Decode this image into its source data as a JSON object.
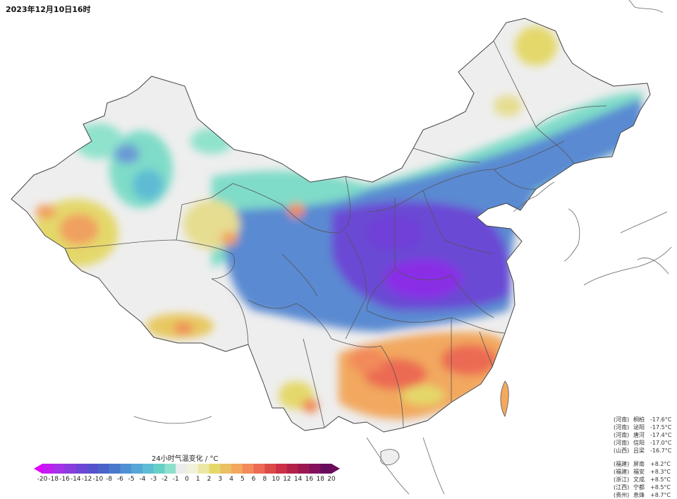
{
  "header": {
    "timestamp": "2023年12月10日16时"
  },
  "legend": {
    "title": "24小时气温变化 / °C",
    "ticks": [
      "-20",
      "-18",
      "-16",
      "-14",
      "-12",
      "-10",
      "-8",
      "-6",
      "-5",
      "-4",
      "-3",
      "-2",
      "-1",
      "0",
      "1",
      "2",
      "3",
      "4",
      "5",
      "6",
      "8",
      "10",
      "12",
      "14",
      "16",
      "18",
      "20"
    ],
    "colors": [
      "#e000ff",
      "#c21cf2",
      "#a531e8",
      "#8a3cde",
      "#6c46d6",
      "#5552cc",
      "#4a63c8",
      "#4a79cc",
      "#4f90d2",
      "#56a6d6",
      "#5dbcd4",
      "#66d0c6",
      "#8ee0cc",
      "#ececec",
      "#f2f2dc",
      "#ece7a4",
      "#e4d86a",
      "#ebc062",
      "#f2a85e",
      "#f28a5a",
      "#ec6a52",
      "#dc4a48",
      "#cc3046",
      "#b22248",
      "#9a1852",
      "#82125c",
      "#6a0c5c"
    ]
  },
  "stations": {
    "drop": [
      {
        "prov": "(河南)",
        "name": "桐柏",
        "value": "-17.6°C"
      },
      {
        "prov": "(河南)",
        "name": "泌阳",
        "value": "-17.5°C"
      },
      {
        "prov": "(河南)",
        "name": "唐河",
        "value": "-17.4°C"
      },
      {
        "prov": "(河南)",
        "name": "信阳",
        "value": "-17.0°C"
      },
      {
        "prov": "(山西)",
        "name": "吕梁",
        "value": "-16.7°C"
      }
    ],
    "rise": [
      {
        "prov": "(福建)",
        "name": "屏南",
        "value": "+8.2°C"
      },
      {
        "prov": "(福建)",
        "name": "福安",
        "value": "+8.3°C"
      },
      {
        "prov": "(浙江)",
        "name": "文成",
        "value": "+8.5°C"
      },
      {
        "prov": "(江西)",
        "name": "宁都",
        "value": "+8.5°C"
      },
      {
        "prov": "(贵州)",
        "name": "息烽",
        "value": "+8.7°C"
      }
    ]
  }
}
